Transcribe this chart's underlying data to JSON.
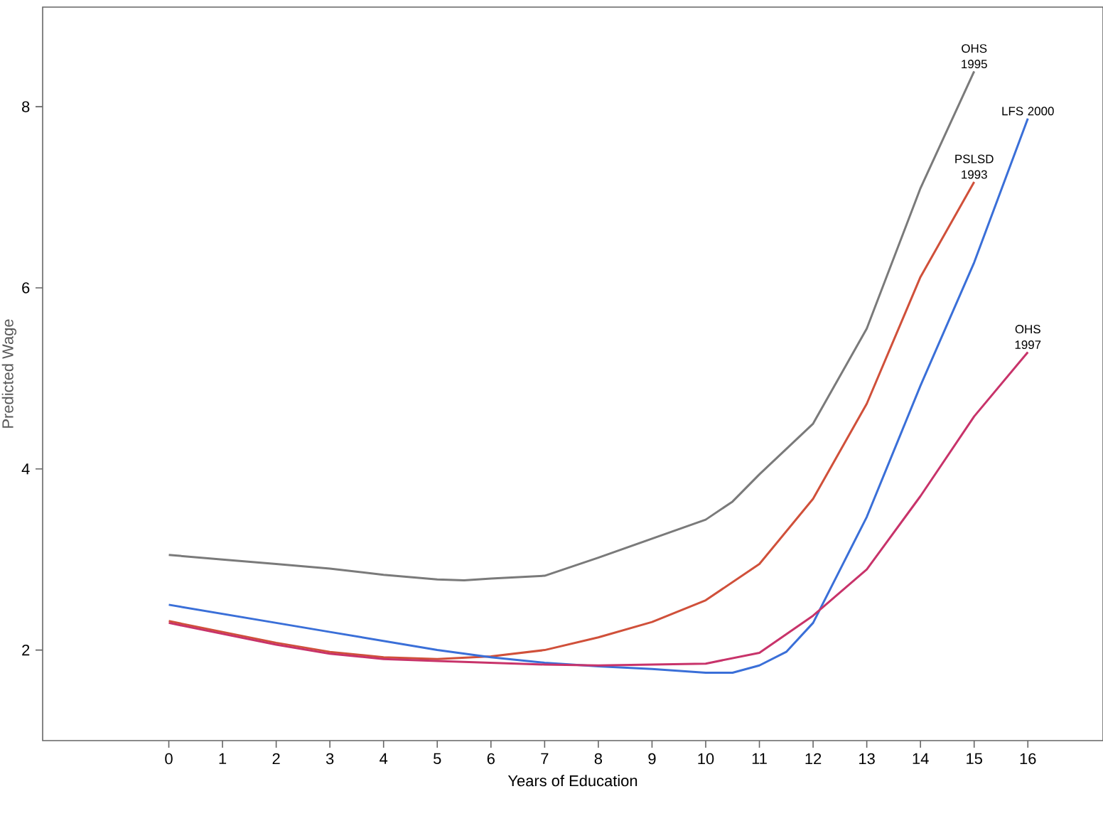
{
  "chart_data": {
    "type": "line",
    "xlabel": "Years of Education",
    "ylabel": "Predicted Wage",
    "xlim": [
      -2.35,
      17.4
    ],
    "ylim": [
      1,
      9.1
    ],
    "xticks": [
      0,
      1,
      2,
      3,
      4,
      5,
      6,
      7,
      8,
      9,
      10,
      11,
      12,
      13,
      14,
      15,
      16
    ],
    "yticks": [
      2,
      4,
      6,
      8
    ],
    "grid": false,
    "legend": false,
    "marker": "none",
    "line_style": "solid",
    "series": [
      {
        "name": "OHS 1995",
        "color": "#7a7a7a",
        "x": [
          0,
          1,
          2,
          3,
          4,
          5,
          5.5,
          6,
          7,
          8,
          9,
          10,
          10.5,
          11,
          12,
          13,
          14,
          15
        ],
        "values": [
          3.05,
          3.0,
          2.95,
          2.9,
          2.83,
          2.78,
          2.77,
          2.79,
          2.82,
          3.02,
          3.23,
          3.44,
          3.64,
          3.94,
          4.5,
          5.55,
          7.1,
          8.39
        ]
      },
      {
        "name": "PSLSD 1993",
        "color": "#d0503a",
        "x": [
          0,
          1,
          2,
          3,
          4,
          5,
          6,
          7,
          8,
          9,
          10,
          11,
          12,
          13,
          14,
          15
        ],
        "values": [
          2.32,
          2.2,
          2.08,
          1.98,
          1.92,
          1.9,
          1.93,
          2.0,
          2.14,
          2.31,
          2.55,
          2.95,
          3.67,
          4.72,
          6.12,
          7.17
        ]
      },
      {
        "name": "LFS 2000",
        "color": "#3a6fd8",
        "x": [
          0,
          1,
          2,
          3,
          4,
          5,
          6,
          7,
          8,
          9,
          10,
          10.5,
          11,
          11.5,
          12,
          13,
          14,
          15,
          16
        ],
        "values": [
          2.5,
          2.4,
          2.3,
          2.2,
          2.1,
          2.0,
          1.92,
          1.86,
          1.82,
          1.79,
          1.75,
          1.75,
          1.83,
          1.98,
          2.3,
          3.47,
          4.92,
          6.28,
          7.87
        ]
      },
      {
        "name": "OHS 1997",
        "color": "#c8336a",
        "x": [
          0,
          1,
          2,
          3,
          4,
          5,
          6,
          7,
          8,
          9,
          10,
          11,
          12,
          13,
          14,
          15,
          16
        ],
        "values": [
          2.3,
          2.18,
          2.06,
          1.96,
          1.9,
          1.88,
          1.86,
          1.84,
          1.83,
          1.84,
          1.85,
          1.97,
          2.38,
          2.89,
          3.7,
          4.58,
          5.29
        ]
      }
    ]
  }
}
